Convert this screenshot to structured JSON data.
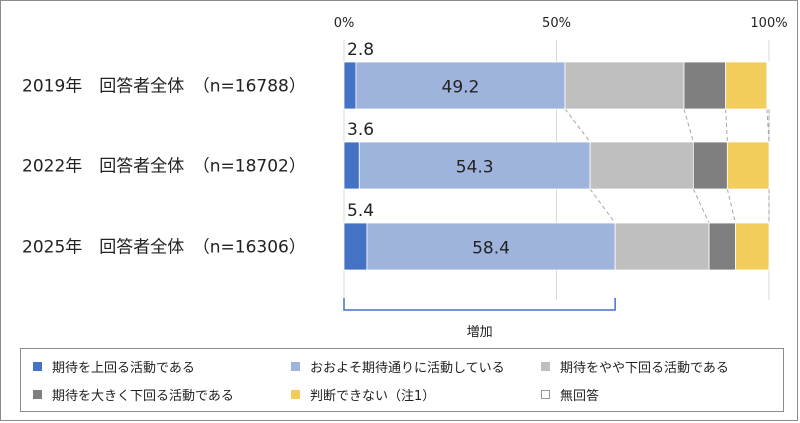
{
  "chart_data": {
    "type": "stacked-bar-horizontal",
    "xlim": [
      0,
      100
    ],
    "x_ticks": [
      "0%",
      "50%",
      "100%"
    ],
    "grid": true,
    "categories": [
      "2019年　回答者全体　（n=16788）",
      "2022年　回答者全体　（n=18702）",
      "2025年　回答者全体　（n=16306）"
    ],
    "series": [
      {
        "name": "期待を上回る活動である",
        "color": "#4472c4",
        "values": [
          2.8,
          3.6,
          5.4
        ],
        "labels": [
          "2.8",
          "3.6",
          "5.4"
        ]
      },
      {
        "name": "おおよそ期待通りに活動している",
        "color": "#9eb4dd",
        "values": [
          49.2,
          54.3,
          58.4
        ],
        "labels": [
          "49.2",
          "54.3",
          "58.4"
        ]
      },
      {
        "name": "期待をやや下回る活動である",
        "color": "#bfbfbf",
        "values": [
          28.0,
          24.3,
          22.1
        ]
      },
      {
        "name": "期待を大きく下回る活動である",
        "color": "#7f7f7f",
        "values": [
          9.8,
          8.0,
          6.2
        ]
      },
      {
        "name": "判断できない（注1）",
        "color": "#f2cd5c",
        "values": [
          9.7,
          9.8,
          7.9
        ]
      },
      {
        "name": "無回答",
        "color": "#ffffff",
        "values": [
          0.5,
          0.0,
          0.0
        ]
      }
    ],
    "annotation": "増加",
    "legend_position": "bottom"
  }
}
